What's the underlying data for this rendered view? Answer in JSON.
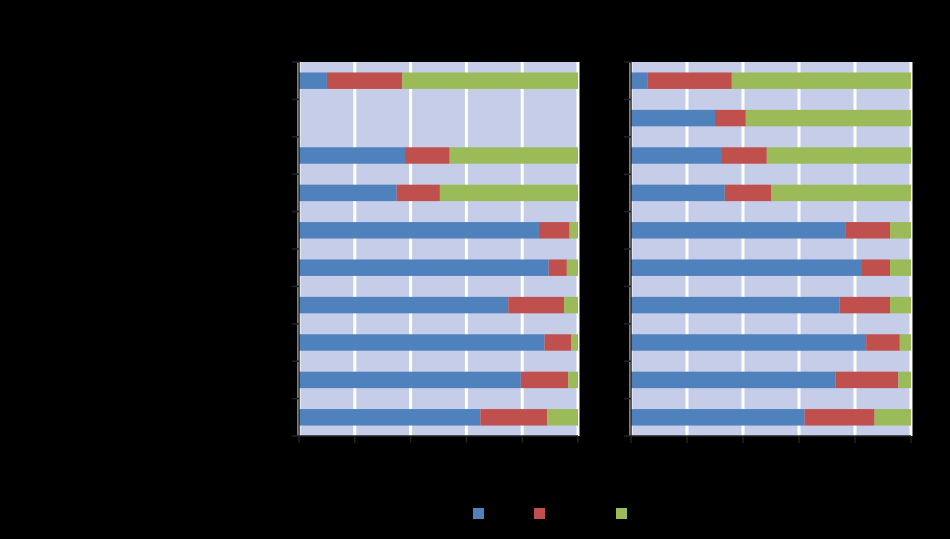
{
  "chart_data": [
    {
      "type": "bar",
      "orientation": "horizontal",
      "stacked": true,
      "grid": true,
      "tick_labels": false,
      "legend": "bottom",
      "categories": [
        null,
        null,
        null,
        null,
        null,
        null,
        null,
        null,
        null,
        null
      ],
      "xlim": [
        0,
        100
      ],
      "xticks": [
        0,
        20,
        40,
        60,
        80,
        100
      ],
      "series": [
        {
          "color": "#4f81bd",
          "values": [
            10,
            null,
            38,
            35,
            86,
            89.5,
            75,
            88,
            79.5,
            65
          ]
        },
        {
          "color": "#c0504d",
          "values": [
            27,
            null,
            16,
            15.5,
            11,
            6.5,
            20,
            9.5,
            17,
            24
          ]
        },
        {
          "color": "#9bbb59",
          "values": [
            63,
            null,
            46,
            49.5,
            3,
            4,
            5,
            2.5,
            3.5,
            11
          ]
        }
      ]
    },
    {
      "type": "bar",
      "orientation": "horizontal",
      "stacked": true,
      "grid": true,
      "tick_labels": false,
      "categories": [
        null,
        null,
        null,
        null,
        null,
        null,
        null,
        null,
        null,
        null
      ],
      "xlim": [
        0,
        100
      ],
      "xticks": [
        0,
        20,
        40,
        60,
        80,
        100
      ],
      "series": [
        {
          "color": "#4f81bd",
          "values": [
            6,
            30,
            32.5,
            33.5,
            76.5,
            82.5,
            74.5,
            84,
            73,
            62
          ]
        },
        {
          "color": "#c0504d",
          "values": [
            30,
            11,
            16,
            16.5,
            16,
            10,
            18,
            12,
            22.5,
            25
          ]
        },
        {
          "color": "#9bbb59",
          "values": [
            64,
            59,
            51.5,
            50,
            7.5,
            7.5,
            7.5,
            4,
            4.5,
            13
          ]
        }
      ]
    }
  ]
}
